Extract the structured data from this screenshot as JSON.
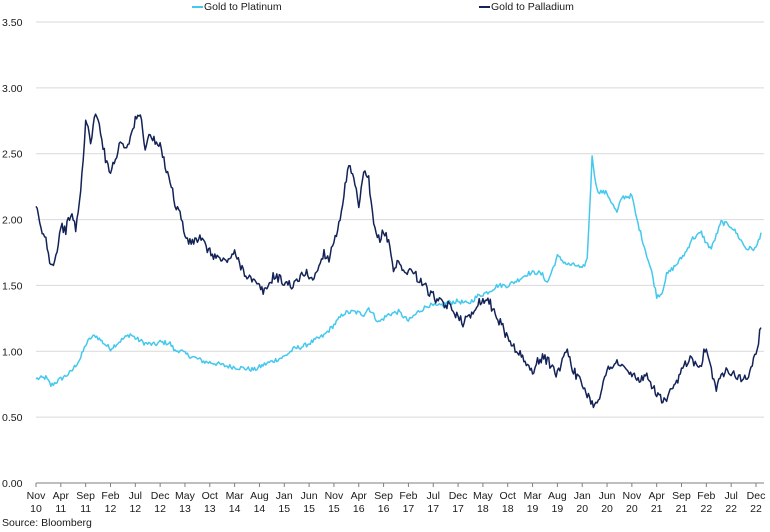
{
  "chart_data": {
    "type": "line",
    "title": "",
    "xlabel": "",
    "ylabel": "",
    "ylim": [
      0,
      3.5
    ],
    "yticks": [
      "0.00",
      "0.50",
      "1.00",
      "1.50",
      "2.00",
      "2.50",
      "3.00",
      "3.50"
    ],
    "x_start": "2010-11",
    "x_end": "2022-12",
    "xticks": [
      {
        "month": "Nov",
        "year": "10"
      },
      {
        "month": "Apr",
        "year": "11"
      },
      {
        "month": "Sep",
        "year": "11"
      },
      {
        "month": "Feb",
        "year": "12"
      },
      {
        "month": "Jul",
        "year": "12"
      },
      {
        "month": "Dec",
        "year": "12"
      },
      {
        "month": "May",
        "year": "13"
      },
      {
        "month": "Oct",
        "year": "13"
      },
      {
        "month": "Mar",
        "year": "14"
      },
      {
        "month": "Aug",
        "year": "14"
      },
      {
        "month": "Jan",
        "year": "15"
      },
      {
        "month": "Jun",
        "year": "15"
      },
      {
        "month": "Nov",
        "year": "15"
      },
      {
        "month": "Apr",
        "year": "16"
      },
      {
        "month": "Sep",
        "year": "16"
      },
      {
        "month": "Feb",
        "year": "17"
      },
      {
        "month": "Jul",
        "year": "17"
      },
      {
        "month": "Dec",
        "year": "17"
      },
      {
        "month": "May",
        "year": "18"
      },
      {
        "month": "Oct",
        "year": "18"
      },
      {
        "month": "Mar",
        "year": "19"
      },
      {
        "month": "Aug",
        "year": "19"
      },
      {
        "month": "Jan",
        "year": "20"
      },
      {
        "month": "Jun",
        "year": "20"
      },
      {
        "month": "Nov",
        "year": "20"
      },
      {
        "month": "Apr",
        "year": "21"
      },
      {
        "month": "Sep",
        "year": "21"
      },
      {
        "month": "Feb",
        "year": "22"
      },
      {
        "month": "Jul",
        "year": "22"
      },
      {
        "month": "Dec",
        "year": "22"
      }
    ],
    "grid": "horizontal",
    "legend_position": "top-center",
    "source": "Source: Bloomberg",
    "series": [
      {
        "name": "Gold to Platinum",
        "color": "#45c8ee",
        "points": [
          [
            "2010-11",
            0.79
          ],
          [
            "2011-01",
            0.8
          ],
          [
            "2011-02",
            0.74
          ],
          [
            "2011-04",
            0.79
          ],
          [
            "2011-06",
            0.84
          ],
          [
            "2011-08",
            0.95
          ],
          [
            "2011-09",
            1.05
          ],
          [
            "2011-10",
            1.1
          ],
          [
            "2011-11",
            1.12
          ],
          [
            "2012-01",
            1.05
          ],
          [
            "2012-02",
            1.02
          ],
          [
            "2012-04",
            1.08
          ],
          [
            "2012-06",
            1.13
          ],
          [
            "2012-07",
            1.1
          ],
          [
            "2012-09",
            1.06
          ],
          [
            "2012-11",
            1.05
          ],
          [
            "2012-12",
            1.07
          ],
          [
            "2013-02",
            1.06
          ],
          [
            "2013-03",
            1.0
          ],
          [
            "2013-04",
            1.01
          ],
          [
            "2013-05",
            0.98
          ],
          [
            "2013-07",
            0.95
          ],
          [
            "2013-09",
            0.92
          ],
          [
            "2013-11",
            0.91
          ],
          [
            "2014-01",
            0.89
          ],
          [
            "2014-03",
            0.88
          ],
          [
            "2014-05",
            0.87
          ],
          [
            "2014-07",
            0.86
          ],
          [
            "2014-09",
            0.9
          ],
          [
            "2014-11",
            0.93
          ],
          [
            "2015-01",
            0.96
          ],
          [
            "2015-03",
            1.02
          ],
          [
            "2015-05",
            1.04
          ],
          [
            "2015-07",
            1.08
          ],
          [
            "2015-09",
            1.12
          ],
          [
            "2015-11",
            1.2
          ],
          [
            "2016-01",
            1.29
          ],
          [
            "2016-03",
            1.3
          ],
          [
            "2016-05",
            1.28
          ],
          [
            "2016-06",
            1.33
          ],
          [
            "2016-08",
            1.22
          ],
          [
            "2016-10",
            1.28
          ],
          [
            "2016-12",
            1.3
          ],
          [
            "2017-02",
            1.23
          ],
          [
            "2017-04",
            1.3
          ],
          [
            "2017-06",
            1.35
          ],
          [
            "2017-08",
            1.34
          ],
          [
            "2017-10",
            1.37
          ],
          [
            "2017-12",
            1.38
          ],
          [
            "2018-02",
            1.36
          ],
          [
            "2018-04",
            1.42
          ],
          [
            "2018-06",
            1.45
          ],
          [
            "2018-08",
            1.5
          ],
          [
            "2018-10",
            1.5
          ],
          [
            "2018-12",
            1.54
          ],
          [
            "2019-02",
            1.59
          ],
          [
            "2019-04",
            1.6
          ],
          [
            "2019-05",
            1.58
          ],
          [
            "2019-06",
            1.52
          ],
          [
            "2019-07",
            1.62
          ],
          [
            "2019-08",
            1.72
          ],
          [
            "2019-10",
            1.66
          ],
          [
            "2019-12",
            1.65
          ],
          [
            "2020-01",
            1.62
          ],
          [
            "2020-02",
            1.7
          ],
          [
            "2020-03",
            2.47
          ],
          [
            "2020-04",
            2.22
          ],
          [
            "2020-06",
            2.2
          ],
          [
            "2020-08",
            2.05
          ],
          [
            "2020-09",
            2.17
          ],
          [
            "2020-11",
            2.18
          ],
          [
            "2020-12",
            2.0
          ],
          [
            "2021-02",
            1.73
          ],
          [
            "2021-03",
            1.6
          ],
          [
            "2021-04",
            1.42
          ],
          [
            "2021-05",
            1.44
          ],
          [
            "2021-06",
            1.58
          ],
          [
            "2021-08",
            1.66
          ],
          [
            "2021-10",
            1.76
          ],
          [
            "2021-11",
            1.85
          ],
          [
            "2022-01",
            1.9
          ],
          [
            "2022-02",
            1.82
          ],
          [
            "2022-03",
            1.78
          ],
          [
            "2022-05",
            1.98
          ],
          [
            "2022-07",
            1.95
          ],
          [
            "2022-08",
            1.9
          ],
          [
            "2022-10",
            1.78
          ],
          [
            "2022-12",
            1.78
          ],
          [
            "2023-01",
            1.9
          ]
        ]
      },
      {
        "name": "Gold to Palladium",
        "color": "#142357",
        "points": [
          [
            "2010-11",
            2.1
          ],
          [
            "2010-12",
            1.92
          ],
          [
            "2011-01",
            1.85
          ],
          [
            "2011-02",
            1.65
          ],
          [
            "2011-03",
            1.72
          ],
          [
            "2011-04",
            1.95
          ],
          [
            "2011-05",
            1.92
          ],
          [
            "2011-06",
            2.05
          ],
          [
            "2011-07",
            1.93
          ],
          [
            "2011-08",
            2.2
          ],
          [
            "2011-09",
            2.75
          ],
          [
            "2011-10",
            2.6
          ],
          [
            "2011-11",
            2.8
          ],
          [
            "2011-12",
            2.68
          ],
          [
            "2012-01",
            2.45
          ],
          [
            "2012-02",
            2.38
          ],
          [
            "2012-03",
            2.45
          ],
          [
            "2012-04",
            2.6
          ],
          [
            "2012-05",
            2.55
          ],
          [
            "2012-06",
            2.62
          ],
          [
            "2012-07",
            2.75
          ],
          [
            "2012-08",
            2.8
          ],
          [
            "2012-09",
            2.55
          ],
          [
            "2012-10",
            2.65
          ],
          [
            "2012-11",
            2.58
          ],
          [
            "2012-12",
            2.55
          ],
          [
            "2013-01",
            2.42
          ],
          [
            "2013-02",
            2.3
          ],
          [
            "2013-03",
            2.12
          ],
          [
            "2013-04",
            2.05
          ],
          [
            "2013-05",
            1.88
          ],
          [
            "2013-06",
            1.82
          ],
          [
            "2013-08",
            1.86
          ],
          [
            "2013-10",
            1.75
          ],
          [
            "2013-12",
            1.7
          ],
          [
            "2014-01",
            1.68
          ],
          [
            "2014-03",
            1.74
          ],
          [
            "2014-05",
            1.6
          ],
          [
            "2014-07",
            1.52
          ],
          [
            "2014-09",
            1.45
          ],
          [
            "2014-11",
            1.58
          ],
          [
            "2015-01",
            1.52
          ],
          [
            "2015-03",
            1.5
          ],
          [
            "2015-05",
            1.6
          ],
          [
            "2015-07",
            1.55
          ],
          [
            "2015-08",
            1.65
          ],
          [
            "2015-09",
            1.75
          ],
          [
            "2015-10",
            1.7
          ],
          [
            "2015-11",
            1.85
          ],
          [
            "2015-12",
            1.95
          ],
          [
            "2016-01",
            2.2
          ],
          [
            "2016-02",
            2.4
          ],
          [
            "2016-03",
            2.3
          ],
          [
            "2016-04",
            2.1
          ],
          [
            "2016-05",
            2.35
          ],
          [
            "2016-06",
            2.3
          ],
          [
            "2016-07",
            1.95
          ],
          [
            "2016-08",
            1.85
          ],
          [
            "2016-09",
            1.9
          ],
          [
            "2016-10",
            1.85
          ],
          [
            "2016-11",
            1.62
          ],
          [
            "2016-12",
            1.68
          ],
          [
            "2017-01",
            1.6
          ],
          [
            "2017-02",
            1.62
          ],
          [
            "2017-03",
            1.6
          ],
          [
            "2017-04",
            1.55
          ],
          [
            "2017-05",
            1.52
          ],
          [
            "2017-06",
            1.45
          ],
          [
            "2017-07",
            1.42
          ],
          [
            "2017-08",
            1.38
          ],
          [
            "2017-09",
            1.35
          ],
          [
            "2017-10",
            1.35
          ],
          [
            "2017-11",
            1.3
          ],
          [
            "2017-12",
            1.28
          ],
          [
            "2018-01",
            1.22
          ],
          [
            "2018-02",
            1.25
          ],
          [
            "2018-03",
            1.3
          ],
          [
            "2018-04",
            1.38
          ],
          [
            "2018-05",
            1.38
          ],
          [
            "2018-06",
            1.4
          ],
          [
            "2018-07",
            1.32
          ],
          [
            "2018-08",
            1.25
          ],
          [
            "2018-09",
            1.18
          ],
          [
            "2018-10",
            1.1
          ],
          [
            "2018-11",
            1.05
          ],
          [
            "2018-12",
            1.0
          ],
          [
            "2019-01",
            0.95
          ],
          [
            "2019-02",
            0.88
          ],
          [
            "2019-03",
            0.85
          ],
          [
            "2019-04",
            0.92
          ],
          [
            "2019-05",
            0.95
          ],
          [
            "2019-06",
            0.93
          ],
          [
            "2019-07",
            0.88
          ],
          [
            "2019-08",
            0.82
          ],
          [
            "2019-09",
            0.95
          ],
          [
            "2019-10",
            1.02
          ],
          [
            "2019-11",
            0.88
          ],
          [
            "2019-12",
            0.8
          ],
          [
            "2020-01",
            0.75
          ],
          [
            "2020-02",
            0.68
          ],
          [
            "2020-03",
            0.6
          ],
          [
            "2020-04",
            0.62
          ],
          [
            "2020-05",
            0.72
          ],
          [
            "2020-06",
            0.85
          ],
          [
            "2020-07",
            0.9
          ],
          [
            "2020-08",
            0.92
          ],
          [
            "2020-09",
            0.88
          ],
          [
            "2020-10",
            0.85
          ],
          [
            "2020-11",
            0.82
          ],
          [
            "2020-12",
            0.8
          ],
          [
            "2021-01",
            0.78
          ],
          [
            "2021-02",
            0.8
          ],
          [
            "2021-03",
            0.75
          ],
          [
            "2021-04",
            0.68
          ],
          [
            "2021-05",
            0.63
          ],
          [
            "2021-06",
            0.62
          ],
          [
            "2021-07",
            0.7
          ],
          [
            "2021-08",
            0.75
          ],
          [
            "2021-09",
            0.85
          ],
          [
            "2021-10",
            0.92
          ],
          [
            "2021-11",
            0.95
          ],
          [
            "2021-12",
            0.9
          ],
          [
            "2022-01",
            0.92
          ],
          [
            "2022-02",
            1.05
          ],
          [
            "2022-03",
            0.85
          ],
          [
            "2022-04",
            0.72
          ],
          [
            "2022-05",
            0.8
          ],
          [
            "2022-06",
            0.88
          ],
          [
            "2022-07",
            0.85
          ],
          [
            "2022-08",
            0.82
          ],
          [
            "2022-09",
            0.8
          ],
          [
            "2022-10",
            0.78
          ],
          [
            "2022-11",
            0.88
          ],
          [
            "2022-12",
            0.98
          ],
          [
            "2023-01",
            1.18
          ]
        ]
      }
    ]
  }
}
